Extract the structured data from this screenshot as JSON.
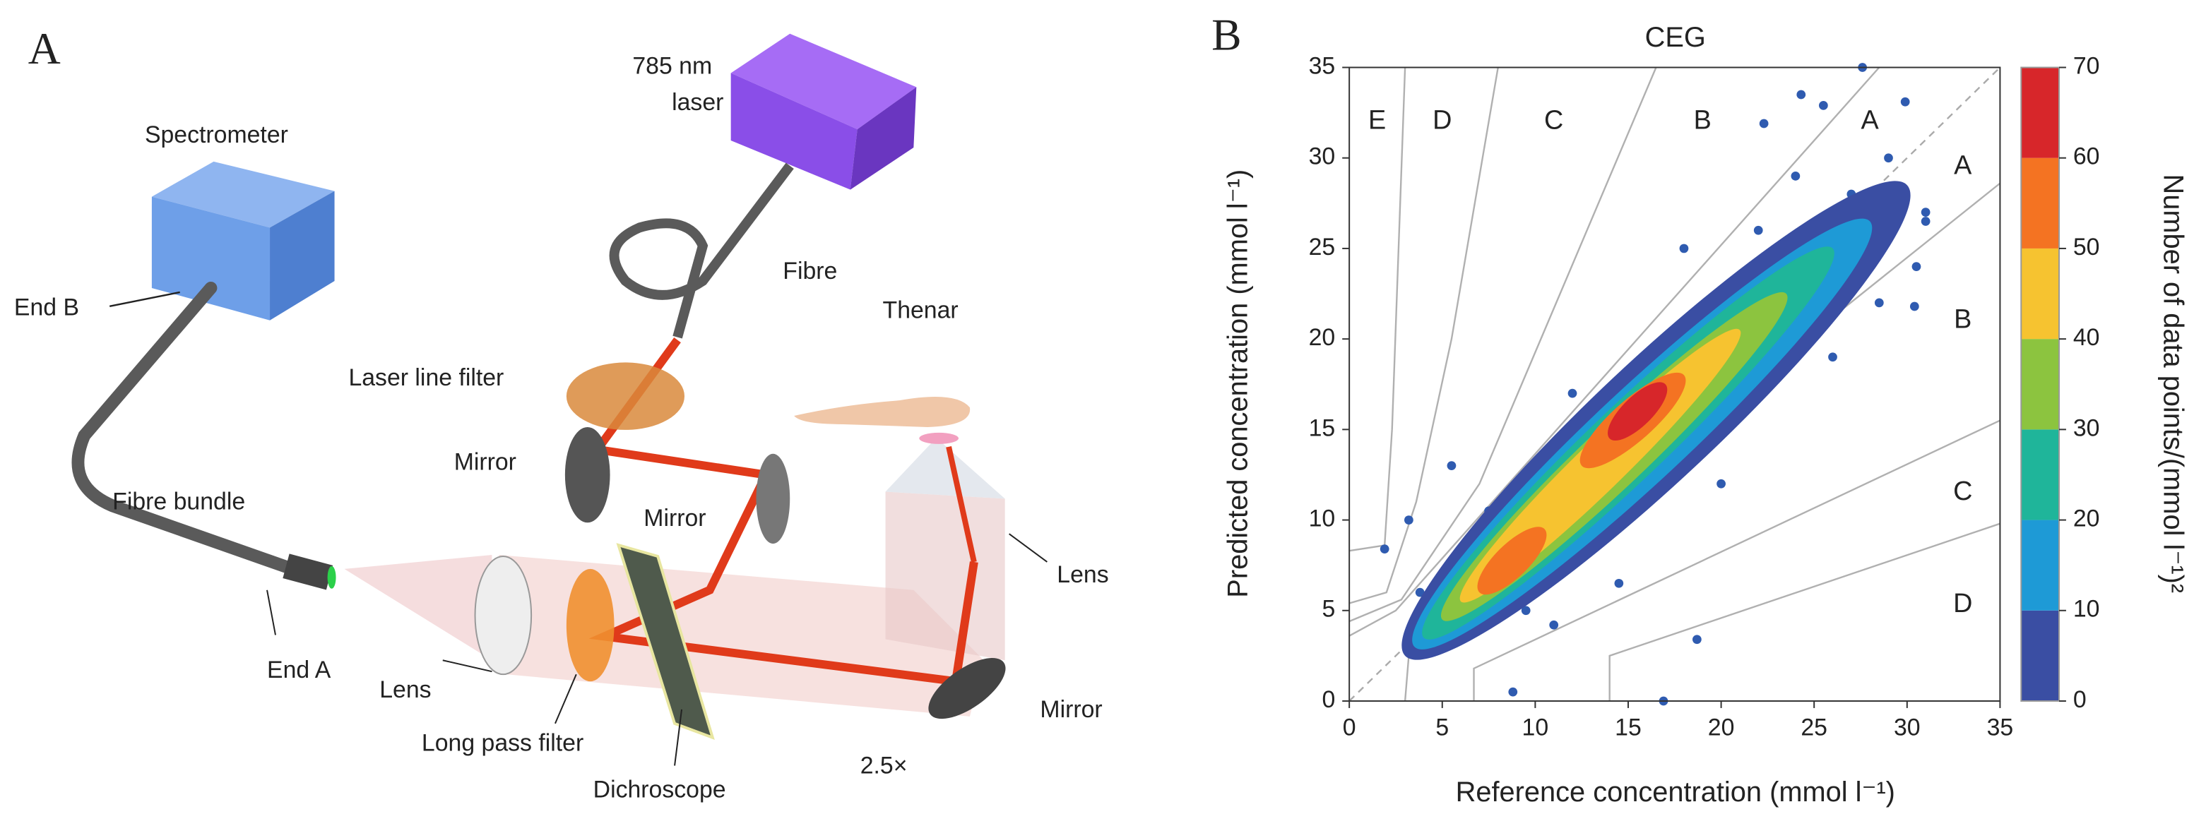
{
  "panel_a": {
    "label": "A",
    "labels": [
      "785 nm",
      "laser",
      "Spectrometer",
      "End B",
      "Fibre",
      "Laser line filter",
      "Thenar",
      "Mirror",
      "Mirror",
      "Fibre bundle",
      "Lens",
      "End A",
      "Lens",
      "Long pass filter",
      "Dichroscope",
      "2.5×",
      "Mirror"
    ]
  },
  "chart_data": {
    "type": "scatter",
    "panel_label": "B",
    "title": "CEG",
    "x_label": "Reference concentration (mmol l⁻¹)",
    "y_label": "Predicted concentration (mmol l⁻¹)",
    "xlim": [
      0,
      35
    ],
    "ylim": [
      0,
      35
    ],
    "xticks": [
      0,
      5,
      10,
      15,
      20,
      25,
      30,
      35
    ],
    "yticks": [
      0,
      5,
      10,
      15,
      20,
      25,
      30,
      35
    ],
    "point_color": "#2f5bb0",
    "x": [
      8.8,
      16.9,
      18.7,
      30.4,
      27.6,
      24.3,
      22.3,
      25.5,
      29.9,
      13.5,
      1.9,
      3.2,
      5.5,
      9.5,
      11,
      27,
      29,
      31,
      30.5,
      28.5,
      20,
      22,
      24,
      18,
      12,
      7.5,
      3.8,
      26,
      31,
      14.5
    ],
    "y": [
      0.5,
      0,
      3.4,
      21.8,
      35,
      33.5,
      31.9,
      32.9,
      33.1,
      15.4,
      8.4,
      10,
      13,
      5,
      4.2,
      28,
      30,
      27,
      24,
      22,
      12,
      26,
      29,
      25,
      17,
      10.5,
      6,
      19,
      26.5,
      6.5
    ],
    "colorbar": {
      "label": "Number of data points/(mmol l⁻¹)²",
      "ticks": [
        0,
        10,
        20,
        30,
        40,
        50,
        60,
        70
      ],
      "colors": [
        "#3a4ea3",
        "#1e9ad6",
        "#1fb59a",
        "#8cc43f",
        "#f6c330",
        "#f47322",
        "#d7262a"
      ]
    },
    "density": [
      {
        "level": 0,
        "from": [
          3,
          2.5
        ],
        "to": [
          30,
          28.5
        ],
        "width": 6.5
      },
      {
        "level": 10,
        "from": [
          3.5,
          3
        ],
        "to": [
          28,
          26.5
        ],
        "width": 5
      },
      {
        "level": 20,
        "from": [
          4,
          3.5
        ],
        "to": [
          26,
          25
        ],
        "width": 4
      },
      {
        "level": 30,
        "from": [
          5,
          4.5
        ],
        "to": [
          23.5,
          22.5
        ],
        "width": 3.3
      },
      {
        "level": 40,
        "from": [
          6,
          5.5
        ],
        "to": [
          21,
          20.5
        ],
        "width": 2.6
      },
      {
        "level": 50,
        "from": [
          7,
          6
        ],
        "to": [
          10.5,
          9.5
        ],
        "width": 1.8
      },
      {
        "level": 50,
        "from": [
          12.5,
          13
        ],
        "to": [
          18,
          18
        ],
        "width": 2.2
      },
      {
        "level": 60,
        "from": [
          14,
          14.5
        ],
        "to": [
          17,
          17.5
        ],
        "width": 1.6
      }
    ],
    "identity_line": [
      [
        0,
        0
      ],
      [
        35,
        35
      ]
    ],
    "zone_lines": [
      [
        [
          0,
          3.6
        ],
        [
          2.5,
          5
        ],
        [
          28.5,
          35
        ]
      ],
      [
        [
          0,
          4.4
        ],
        [
          2.8,
          5.6
        ],
        [
          7,
          12
        ],
        [
          16.5,
          35
        ]
      ],
      [
        [
          0,
          5.4
        ],
        [
          2,
          6
        ],
        [
          3.6,
          11
        ],
        [
          5.5,
          20
        ],
        [
          8,
          35
        ]
      ],
      [
        [
          0,
          8.3
        ],
        [
          1.9,
          8.6
        ],
        [
          2.3,
          15
        ],
        [
          3,
          35
        ]
      ],
      [
        [
          3,
          0
        ],
        [
          3.2,
          2.5
        ],
        [
          35,
          28.6
        ]
      ],
      [
        [
          6.7,
          0
        ],
        [
          6.7,
          1.8
        ],
        [
          35,
          15.5
        ]
      ],
      [
        [
          14,
          0
        ],
        [
          14,
          2.5
        ],
        [
          35,
          9.8
        ]
      ]
    ],
    "zone_labels": [
      {
        "text": "E",
        "x": 1.5,
        "y": 32
      },
      {
        "text": "D",
        "x": 5,
        "y": 32
      },
      {
        "text": "C",
        "x": 11,
        "y": 32
      },
      {
        "text": "B",
        "x": 19,
        "y": 32
      },
      {
        "text": "A",
        "x": 28,
        "y": 32
      },
      {
        "text": "A",
        "x": 33,
        "y": 29.5
      },
      {
        "text": "B",
        "x": 33,
        "y": 21
      },
      {
        "text": "C",
        "x": 33,
        "y": 11.5
      },
      {
        "text": "D",
        "x": 33,
        "y": 5.3
      }
    ]
  }
}
